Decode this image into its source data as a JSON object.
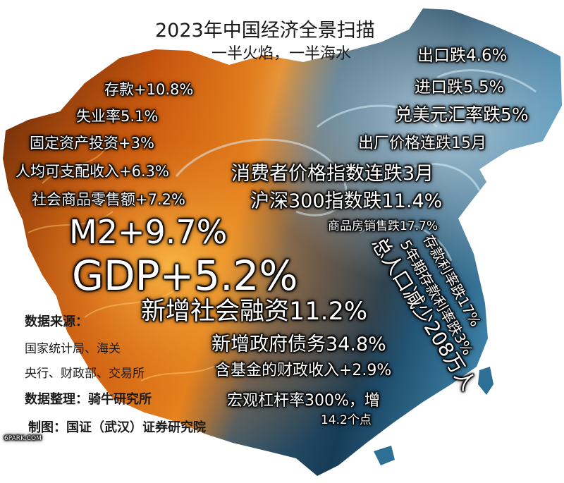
{
  "title": "2023年中国经济全景扫描",
  "subtitle": "一半火焰，一半海水",
  "left_stats": [
    "存款+10.8%",
    "失业率5.1%",
    "固定资产投资+3%",
    "人均可支配收入+6.3%",
    "社会商品零售额+7.2%"
  ],
  "big_stats": {
    "m2": "M2+9.7%",
    "gdp": "GDP+5.2%",
    "social_financing": "新增社会融资11.2%",
    "gov_debt": "新增政府债务34.8%",
    "fiscal_revenue": "含基金的财政收入+2.9%",
    "leverage_line1": "宏观杠杆率300%，增",
    "leverage_line2": "14.2个点"
  },
  "right_stats": [
    "出口跌4.6%",
    "进口跌5.5%",
    "兑美元汇率跌5%",
    "出厂价格连跌15月",
    "消费者价格指数连跌3月",
    "沪深300指数跌11.4%",
    "商品房销售跌17.7%"
  ],
  "diagonal_stats": [
    "总人口减少208万人",
    "5年期存款利率跌3%",
    "存款利率跌17%"
  ],
  "source": {
    "label": "数据来源：",
    "line1": "国家统计局、海关",
    "line2": "央行、财政部、交易所",
    "compiled": "数据整理：骑牛研究所",
    "made": "制图：国证（武汉）证券研究院"
  },
  "watermark": "6PARK.COM",
  "colors": {
    "fire_dark": "#3a1604",
    "fire_mid": "#c8560f",
    "fire_bright": "#f6a52c",
    "water_dark": "#0d2a3f",
    "water_mid": "#2d6f95",
    "water_light": "#a8d4ea"
  }
}
